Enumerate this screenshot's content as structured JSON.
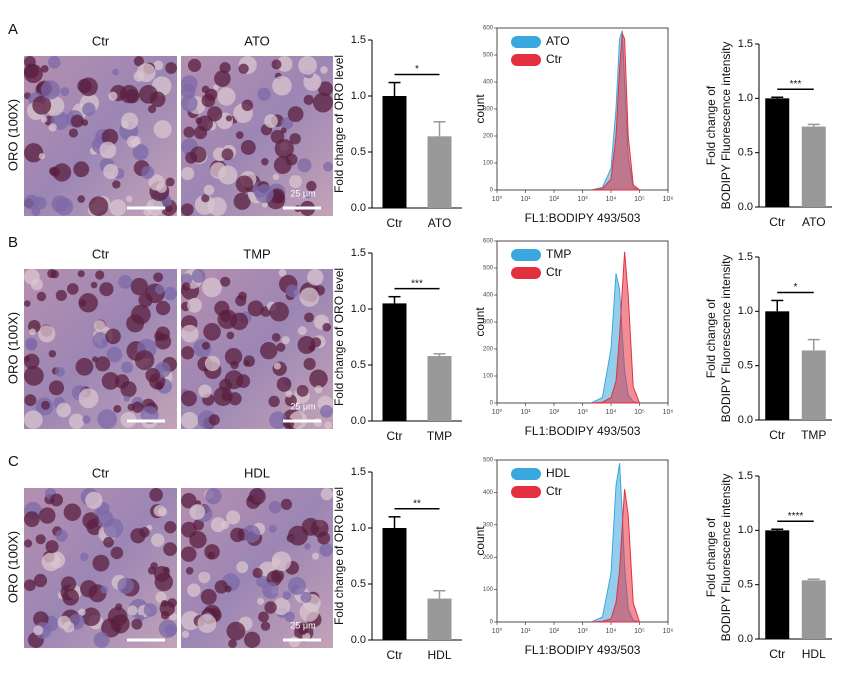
{
  "panels": [
    {
      "label": "A",
      "row_label": "ORO (100X)",
      "image_titles": [
        "Ctr",
        "ATO"
      ],
      "scale_label": "25 μm"
    },
    {
      "label": "B",
      "row_label": "ORO (100X)",
      "image_titles": [
        "Ctr",
        "TMP"
      ],
      "scale_label": "25 μm"
    },
    {
      "label": "C",
      "row_label": "ORO (100X)",
      "image_titles": [
        "Ctr",
        "HDL"
      ],
      "scale_label": "25 μm"
    }
  ],
  "chart_data": [
    {
      "type": "bar",
      "ylabel": [
        "Fold change of ORO level"
      ],
      "categories": [
        "Ctr",
        "ATO"
      ],
      "values": [
        1.0,
        0.64
      ],
      "errors": [
        0.12,
        0.13
      ],
      "colors": [
        "#000000",
        "#999999"
      ],
      "significance": "*",
      "ylim": [
        0,
        1.5
      ],
      "yticks": [
        {
          "value": 0,
          "label": "0.0"
        },
        0.5,
        {
          "value": 1,
          "label": "1.0"
        },
        1.5
      ]
    },
    {
      "type": "density",
      "xlabel": "FL1:BODIPY 493/503",
      "ylabel": "count",
      "xscale": "log",
      "legend": "upper left",
      "xlim": [
        1,
        1000000
      ],
      "xticks": [
        {
          "value": 1,
          "label": "10⁰"
        },
        {
          "value": 10,
          "label": "10¹"
        },
        {
          "value": 100,
          "label": "10²"
        },
        {
          "value": 1000,
          "label": "10³"
        },
        {
          "value": 10000,
          "label": "10⁴"
        },
        {
          "value": 100000,
          "label": "10⁵"
        },
        {
          "value": 1000000,
          "label": "10⁶"
        }
      ],
      "ylim": [
        0,
        600
      ],
      "yticks": [
        0,
        100,
        200,
        300,
        400,
        500,
        600
      ],
      "x": [
        2000,
        5000,
        10000,
        15000,
        20000,
        25000,
        30000,
        40000,
        60000,
        100000
      ],
      "series": [
        {
          "name": "ATO",
          "color": "#3aa8de",
          "values": [
            0,
            10,
            80,
            300,
            560,
            590,
            400,
            120,
            10,
            0
          ]
        },
        {
          "name": "Ctr",
          "color": "#e3303f",
          "values": [
            0,
            5,
            40,
            200,
            450,
            580,
            560,
            200,
            20,
            0
          ]
        }
      ]
    },
    {
      "type": "bar",
      "ylabel": [
        "Fold change of",
        "BODIPY Fluorescence intensity"
      ],
      "categories": [
        "Ctr",
        "ATO"
      ],
      "values": [
        1.0,
        0.74
      ],
      "errors": [
        0.01,
        0.02
      ],
      "colors": [
        "#000000",
        "#999999"
      ],
      "significance": "***",
      "ylim": [
        0,
        1.5
      ],
      "yticks": [
        {
          "value": 0,
          "label": "0.0"
        },
        0.5,
        {
          "value": 1,
          "label": "1.0"
        },
        1.5
      ]
    },
    {
      "type": "bar",
      "ylabel": [
        "Fold change of ORO level"
      ],
      "categories": [
        "Ctr",
        "TMP"
      ],
      "values": [
        1.05,
        0.58
      ],
      "errors": [
        0.06,
        0.02
      ],
      "colors": [
        "#000000",
        "#999999"
      ],
      "significance": "***",
      "ylim": [
        0,
        1.5
      ],
      "yticks": [
        {
          "value": 0,
          "label": "0.0"
        },
        0.5,
        {
          "value": 1,
          "label": "1.0"
        },
        1.5
      ]
    },
    {
      "type": "density",
      "xlabel": "FL1:BODIPY 493/503",
      "ylabel": "count",
      "xscale": "log",
      "legend": "upper left",
      "xlim": [
        1,
        1000000
      ],
      "xticks": [
        {
          "value": 1,
          "label": "10⁰"
        },
        {
          "value": 10,
          "label": "10¹"
        },
        {
          "value": 100,
          "label": "10²"
        },
        {
          "value": 1000,
          "label": "10³"
        },
        {
          "value": 10000,
          "label": "10⁴"
        },
        {
          "value": 100000,
          "label": "10⁵"
        },
        {
          "value": 1000000,
          "label": "10⁶"
        }
      ],
      "ylim": [
        0,
        600
      ],
      "yticks": [
        0,
        100,
        200,
        300,
        400,
        500,
        600
      ],
      "x": [
        2000,
        5000,
        10000,
        15000,
        20000,
        25000,
        30000,
        40000,
        60000,
        100000
      ],
      "series": [
        {
          "name": "TMP",
          "color": "#3aa8de",
          "values": [
            0,
            20,
            200,
            480,
            420,
            250,
            120,
            30,
            5,
            0
          ]
        },
        {
          "name": "Ctr",
          "color": "#e3303f",
          "values": [
            0,
            3,
            20,
            80,
            250,
            420,
            560,
            400,
            60,
            0
          ]
        }
      ]
    },
    {
      "type": "bar",
      "ylabel": [
        "Fold change of",
        "BODIPY Fluorescence intensity"
      ],
      "categories": [
        "Ctr",
        "TMP"
      ],
      "values": [
        1.0,
        0.64
      ],
      "errors": [
        0.1,
        0.1
      ],
      "colors": [
        "#000000",
        "#999999"
      ],
      "significance": "*",
      "ylim": [
        0,
        1.5
      ],
      "yticks": [
        {
          "value": 0,
          "label": "0.0"
        },
        0.5,
        {
          "value": 1,
          "label": "1.0"
        },
        1.5
      ]
    },
    {
      "type": "bar",
      "ylabel": [
        "Fold change of ORO level"
      ],
      "categories": [
        "Ctr",
        "HDL"
      ],
      "values": [
        1.0,
        0.37
      ],
      "errors": [
        0.1,
        0.07
      ],
      "colors": [
        "#000000",
        "#999999"
      ],
      "significance": "**",
      "ylim": [
        0,
        1.5
      ],
      "yticks": [
        {
          "value": 0,
          "label": "0.0"
        },
        0.5,
        {
          "value": 1,
          "label": "1.0"
        },
        1.5
      ]
    },
    {
      "type": "density",
      "xlabel": "FL1:BODIPY 493/503",
      "ylabel": "count",
      "xscale": "log",
      "legend": "upper left",
      "xlim": [
        1,
        1000000
      ],
      "xticks": [
        {
          "value": 1,
          "label": "10⁰"
        },
        {
          "value": 10,
          "label": "10¹"
        },
        {
          "value": 100,
          "label": "10²"
        },
        {
          "value": 1000,
          "label": "10³"
        },
        {
          "value": 10000,
          "label": "10⁴"
        },
        {
          "value": 100000,
          "label": "10⁵"
        },
        {
          "value": 1000000,
          "label": "10⁶"
        }
      ],
      "ylim": [
        0,
        500
      ],
      "yticks": [
        0,
        100,
        200,
        300,
        400,
        500
      ],
      "x": [
        2000,
        5000,
        10000,
        15000,
        20000,
        25000,
        30000,
        40000,
        60000,
        100000
      ],
      "series": [
        {
          "name": "HDL",
          "color": "#3aa8de",
          "values": [
            0,
            15,
            150,
            420,
            490,
            330,
            170,
            40,
            5,
            0
          ]
        },
        {
          "name": "Ctr",
          "color": "#e3303f",
          "values": [
            0,
            2,
            10,
            60,
            160,
            300,
            410,
            330,
            60,
            0
          ]
        }
      ]
    },
    {
      "type": "bar",
      "ylabel": [
        "Fold change of",
        "BODIPY Fluorescence intensity"
      ],
      "categories": [
        "Ctr",
        "HDL"
      ],
      "values": [
        1.0,
        0.54
      ],
      "errors": [
        0.01,
        0.01
      ],
      "colors": [
        "#000000",
        "#999999"
      ],
      "significance": "****",
      "ylim": [
        0,
        1.5
      ],
      "yticks": [
        {
          "value": 0,
          "label": "0.0"
        },
        0.5,
        {
          "value": 1,
          "label": "1.0"
        },
        1.5
      ]
    }
  ]
}
